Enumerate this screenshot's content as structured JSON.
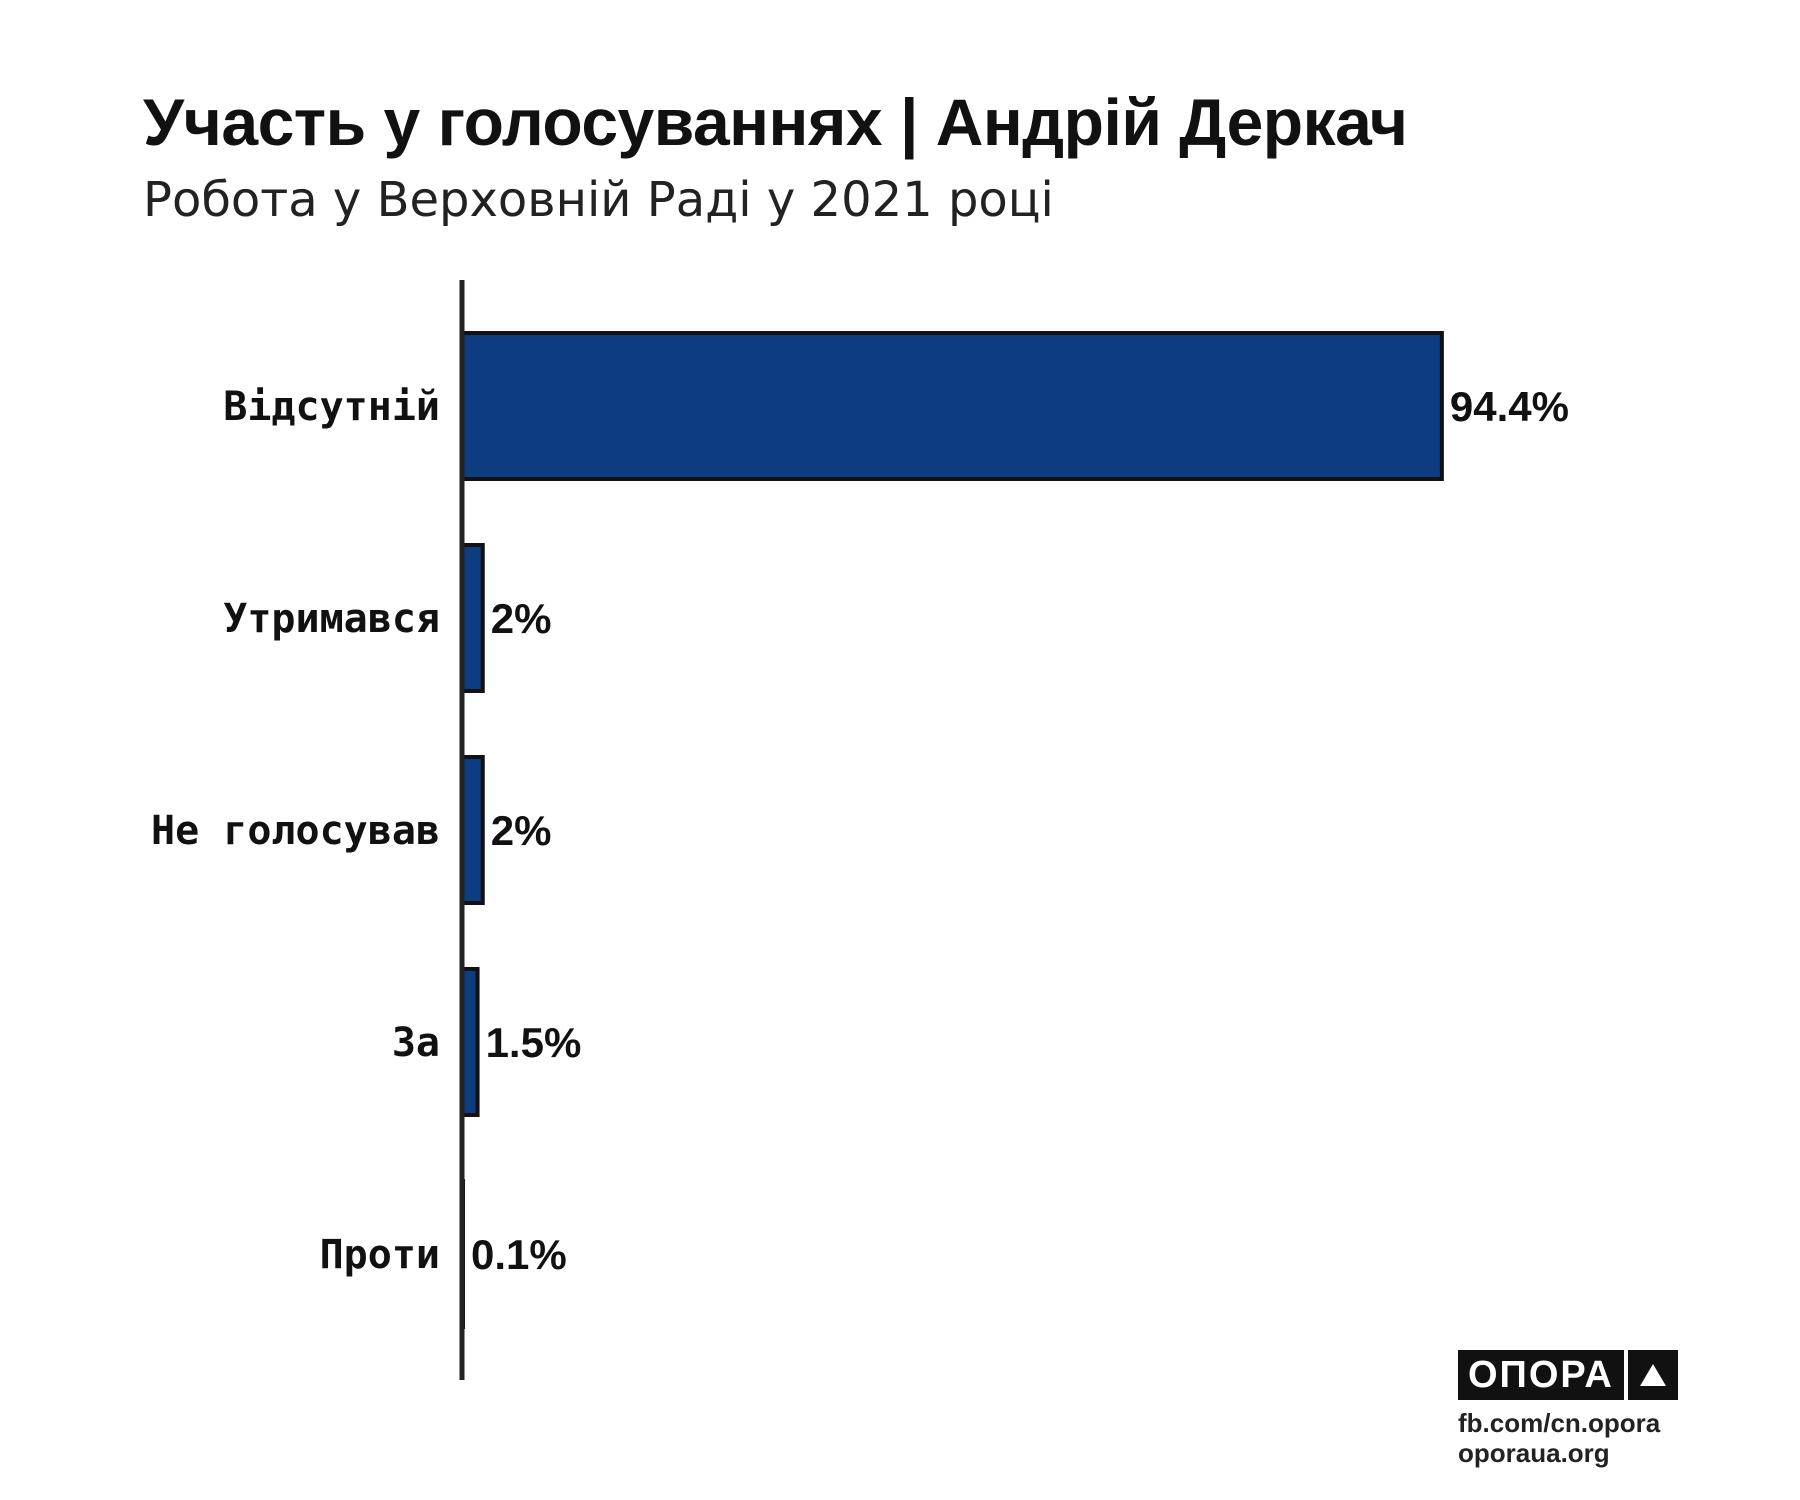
{
  "header": {
    "title": "Участь у голосуваннях | Андрій Деркач",
    "subtitle": "Робота у Верховній Раді у 2021 році"
  },
  "colors": {
    "bar": "#0d3c80",
    "bar_outline": "#111111",
    "axis": "#222222"
  },
  "chart_data": {
    "type": "bar",
    "orientation": "horizontal",
    "title": "Участь у голосуваннях | Андрій Деркач",
    "subtitle": "Робота у Верховній Раді у 2021 році",
    "xlabel": "",
    "ylabel": "",
    "categories": [
      "Відсутній",
      "Утримався",
      "Не голосував",
      "За",
      "Проти"
    ],
    "values": [
      94.4,
      2,
      2,
      1.5,
      0.1
    ],
    "value_labels": [
      "94.4%",
      "2%",
      "2%",
      "1.5%",
      "0.1%"
    ],
    "xlim": [
      0,
      100
    ],
    "grid": false,
    "legend": "none"
  },
  "branding": {
    "logo_text": "ОПОРА",
    "logo_icon": "triangle-icon",
    "facebook": "fb.com/cn.opora",
    "website": "oporaua.org"
  }
}
